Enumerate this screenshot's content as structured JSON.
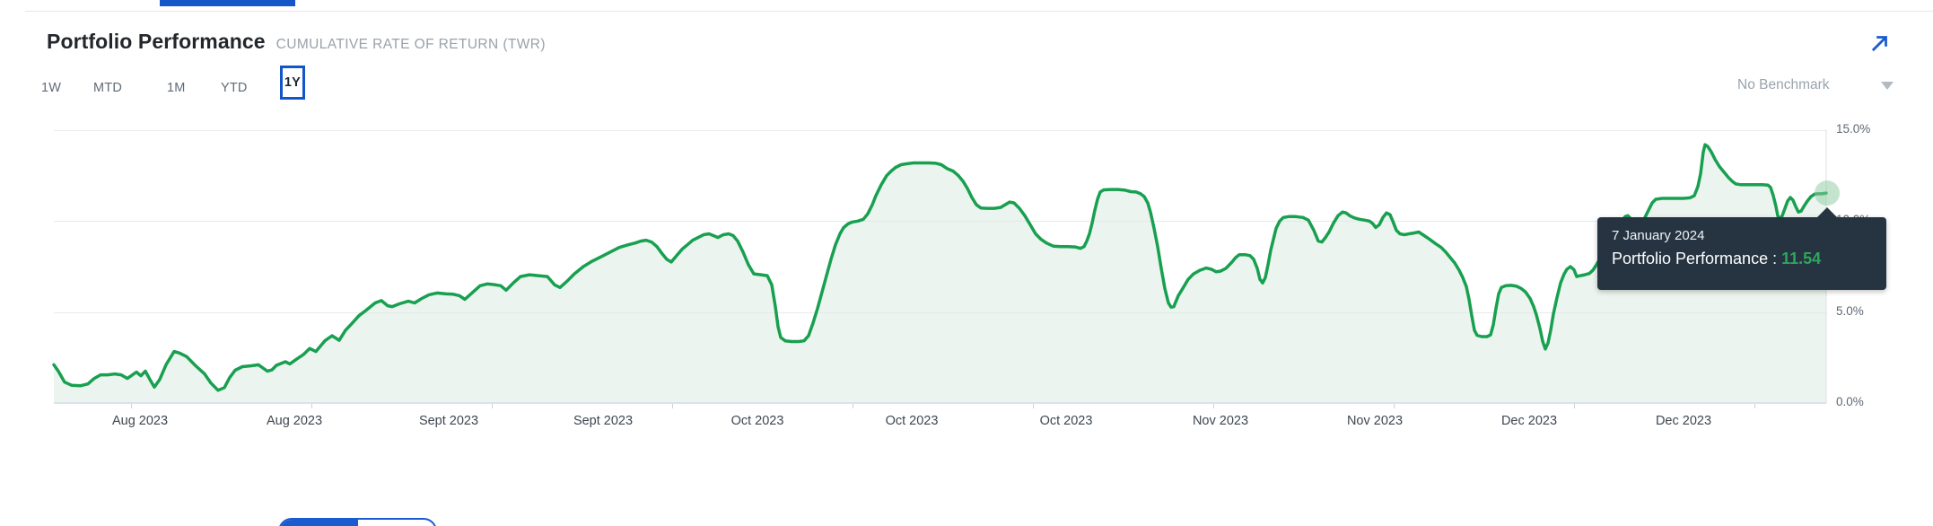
{
  "header": {
    "title": "Portfolio Performance",
    "subtitle": "CUMULATIVE RATE OF RETURN (TWR)",
    "expand_icon": "expand-arrow"
  },
  "range_tabs": {
    "items": [
      {
        "label": "1W",
        "selected": false
      },
      {
        "label": "MTD",
        "selected": false
      },
      {
        "label": "1M",
        "selected": false
      },
      {
        "label": "YTD",
        "selected": false
      },
      {
        "label": "1Y",
        "selected": true
      }
    ]
  },
  "benchmark_select": {
    "value": "No Benchmark",
    "caret_icon": "chevron-down"
  },
  "tooltip": {
    "date": "7 January 2024",
    "series_label": "Portfolio Performance",
    "separator": " : ",
    "value": "11.54"
  },
  "colors": {
    "accent_blue": "#1b5bd0",
    "line_green": "#18a050",
    "fill_green": "#dcebe1",
    "tooltip_bg": "#263442",
    "tooltip_value_green": "#2fa55c"
  },
  "chart_data": {
    "type": "area",
    "title": "Portfolio Performance",
    "series_name": "Portfolio Performance",
    "unit": "%",
    "ylim": [
      0,
      15
    ],
    "grid": "horizontal",
    "legend": "none",
    "y_ticks": [
      {
        "label": "15.0%",
        "value": 15
      },
      {
        "label": "10.0%",
        "value": 10
      },
      {
        "label": "5.0%",
        "value": 5
      },
      {
        "label": "0.0%",
        "value": 0
      }
    ],
    "x_tick_labels": [
      "Aug 2023",
      "Aug 2023",
      "Sept 2023",
      "Sept 2023",
      "Oct 2023",
      "Oct 2023",
      "Oct 2023",
      "Nov 2023",
      "Nov 2023",
      "Dec 2023",
      "Dec 2023"
    ],
    "highlight_point": {
      "date": "7 January 2024",
      "value": 11.54
    },
    "points": [
      [
        0,
        2.1
      ],
      [
        5,
        1.75
      ],
      [
        12,
        1.15
      ],
      [
        20,
        0.97
      ],
      [
        30,
        0.95
      ],
      [
        38,
        1.05
      ],
      [
        45,
        1.35
      ],
      [
        52,
        1.55
      ],
      [
        60,
        1.55
      ],
      [
        68,
        1.6
      ],
      [
        75,
        1.55
      ],
      [
        82,
        1.35
      ],
      [
        92,
        1.7
      ],
      [
        97,
        1.5
      ],
      [
        102,
        1.75
      ],
      [
        107,
        1.3
      ],
      [
        112,
        0.88
      ],
      [
        118,
        1.3
      ],
      [
        125,
        2.1
      ],
      [
        134,
        2.83
      ],
      [
        140,
        2.75
      ],
      [
        148,
        2.55
      ],
      [
        158,
        2.05
      ],
      [
        168,
        1.6
      ],
      [
        175,
        1.1
      ],
      [
        183,
        0.7
      ],
      [
        190,
        0.85
      ],
      [
        196,
        1.4
      ],
      [
        202,
        1.8
      ],
      [
        210,
        2.0
      ],
      [
        220,
        2.05
      ],
      [
        228,
        2.1
      ],
      [
        238,
        1.75
      ],
      [
        243,
        1.82
      ],
      [
        248,
        2.07
      ],
      [
        258,
        2.27
      ],
      [
        263,
        2.15
      ],
      [
        270,
        2.4
      ],
      [
        278,
        2.66
      ],
      [
        285,
        3.0
      ],
      [
        292,
        2.83
      ],
      [
        302,
        3.42
      ],
      [
        310,
        3.7
      ],
      [
        318,
        3.45
      ],
      [
        325,
        4.0
      ],
      [
        332,
        4.36
      ],
      [
        340,
        4.8
      ],
      [
        348,
        5.1
      ],
      [
        358,
        5.5
      ],
      [
        365,
        5.63
      ],
      [
        372,
        5.35
      ],
      [
        377,
        5.3
      ],
      [
        385,
        5.45
      ],
      [
        395,
        5.6
      ],
      [
        402,
        5.5
      ],
      [
        410,
        5.75
      ],
      [
        418,
        5.95
      ],
      [
        427,
        6.05
      ],
      [
        437,
        6.0
      ],
      [
        445,
        5.98
      ],
      [
        452,
        5.9
      ],
      [
        458,
        5.7
      ],
      [
        467,
        6.1
      ],
      [
        475,
        6.45
      ],
      [
        483,
        6.55
      ],
      [
        492,
        6.5
      ],
      [
        498,
        6.45
      ],
      [
        504,
        6.2
      ],
      [
        512,
        6.6
      ],
      [
        520,
        6.95
      ],
      [
        530,
        7.05
      ],
      [
        540,
        7.0
      ],
      [
        550,
        6.95
      ],
      [
        558,
        6.5
      ],
      [
        564,
        6.35
      ],
      [
        572,
        6.7
      ],
      [
        580,
        7.1
      ],
      [
        590,
        7.5
      ],
      [
        600,
        7.8
      ],
      [
        610,
        8.05
      ],
      [
        620,
        8.3
      ],
      [
        630,
        8.55
      ],
      [
        640,
        8.7
      ],
      [
        648,
        8.8
      ],
      [
        654,
        8.9
      ],
      [
        660,
        8.95
      ],
      [
        666,
        8.85
      ],
      [
        672,
        8.6
      ],
      [
        678,
        8.2
      ],
      [
        683,
        7.9
      ],
      [
        688,
        7.75
      ],
      [
        694,
        8.1
      ],
      [
        700,
        8.45
      ],
      [
        706,
        8.7
      ],
      [
        712,
        8.95
      ],
      [
        718,
        9.1
      ],
      [
        724,
        9.25
      ],
      [
        730,
        9.3
      ],
      [
        735,
        9.2
      ],
      [
        740,
        9.1
      ],
      [
        746,
        9.25
      ],
      [
        752,
        9.3
      ],
      [
        757,
        9.2
      ],
      [
        762,
        8.9
      ],
      [
        768,
        8.3
      ],
      [
        774,
        7.6
      ],
      [
        780,
        7.1
      ],
      [
        788,
        7.05
      ],
      [
        795,
        7.0
      ],
      [
        800,
        6.5
      ],
      [
        804,
        5.3
      ],
      [
        807,
        4.2
      ],
      [
        810,
        3.6
      ],
      [
        815,
        3.42
      ],
      [
        822,
        3.38
      ],
      [
        830,
        3.38
      ],
      [
        836,
        3.42
      ],
      [
        841,
        3.7
      ],
      [
        846,
        4.4
      ],
      [
        851,
        5.2
      ],
      [
        856,
        6.1
      ],
      [
        861,
        7.0
      ],
      [
        866,
        7.9
      ],
      [
        871,
        8.7
      ],
      [
        876,
        9.3
      ],
      [
        880,
        9.64
      ],
      [
        885,
        9.85
      ],
      [
        890,
        9.95
      ],
      [
        896,
        10.0
      ],
      [
        902,
        10.1
      ],
      [
        907,
        10.4
      ],
      [
        912,
        10.9
      ],
      [
        916,
        11.4
      ],
      [
        922,
        12.0
      ],
      [
        928,
        12.5
      ],
      [
        933,
        12.75
      ],
      [
        938,
        12.95
      ],
      [
        944,
        13.1
      ],
      [
        950,
        13.15
      ],
      [
        958,
        13.2
      ],
      [
        966,
        13.2
      ],
      [
        975,
        13.2
      ],
      [
        983,
        13.18
      ],
      [
        989,
        13.1
      ],
      [
        995,
        12.9
      ],
      [
        1002,
        12.75
      ],
      [
        1008,
        12.5
      ],
      [
        1013,
        12.2
      ],
      [
        1018,
        11.8
      ],
      [
        1023,
        11.3
      ],
      [
        1028,
        10.9
      ],
      [
        1033,
        10.72
      ],
      [
        1040,
        10.7
      ],
      [
        1048,
        10.7
      ],
      [
        1055,
        10.75
      ],
      [
        1060,
        10.9
      ],
      [
        1065,
        11.05
      ],
      [
        1070,
        11.0
      ],
      [
        1076,
        10.7
      ],
      [
        1082,
        10.3
      ],
      [
        1088,
        9.8
      ],
      [
        1094,
        9.3
      ],
      [
        1100,
        9.0
      ],
      [
        1106,
        8.8
      ],
      [
        1114,
        8.62
      ],
      [
        1122,
        8.6
      ],
      [
        1130,
        8.6
      ],
      [
        1138,
        8.58
      ],
      [
        1144,
        8.5
      ],
      [
        1148,
        8.6
      ],
      [
        1151,
        8.9
      ],
      [
        1154,
        9.3
      ],
      [
        1157,
        9.9
      ],
      [
        1160,
        10.6
      ],
      [
        1163,
        11.2
      ],
      [
        1166,
        11.6
      ],
      [
        1170,
        11.72
      ],
      [
        1178,
        11.74
      ],
      [
        1186,
        11.74
      ],
      [
        1194,
        11.7
      ],
      [
        1200,
        11.62
      ],
      [
        1206,
        11.6
      ],
      [
        1211,
        11.5
      ],
      [
        1215,
        11.35
      ],
      [
        1219,
        11.0
      ],
      [
        1222,
        10.5
      ],
      [
        1226,
        9.6
      ],
      [
        1230,
        8.6
      ],
      [
        1234,
        7.4
      ],
      [
        1238,
        6.3
      ],
      [
        1242,
        5.5
      ],
      [
        1245,
        5.27
      ],
      [
        1248,
        5.3
      ],
      [
        1253,
        5.9
      ],
      [
        1258,
        6.3
      ],
      [
        1264,
        6.8
      ],
      [
        1270,
        7.1
      ],
      [
        1277,
        7.3
      ],
      [
        1284,
        7.42
      ],
      [
        1290,
        7.35
      ],
      [
        1295,
        7.22
      ],
      [
        1300,
        7.25
      ],
      [
        1306,
        7.4
      ],
      [
        1312,
        7.7
      ],
      [
        1317,
        8.0
      ],
      [
        1321,
        8.15
      ],
      [
        1328,
        8.15
      ],
      [
        1333,
        8.1
      ],
      [
        1337,
        7.9
      ],
      [
        1341,
        7.4
      ],
      [
        1344,
        6.8
      ],
      [
        1347,
        6.6
      ],
      [
        1350,
        6.9
      ],
      [
        1353,
        7.6
      ],
      [
        1356,
        8.4
      ],
      [
        1359,
        9.0
      ],
      [
        1362,
        9.6
      ],
      [
        1366,
        10.0
      ],
      [
        1370,
        10.2
      ],
      [
        1376,
        10.25
      ],
      [
        1384,
        10.25
      ],
      [
        1392,
        10.2
      ],
      [
        1398,
        10.05
      ],
      [
        1404,
        9.5
      ],
      [
        1409,
        8.9
      ],
      [
        1413,
        8.85
      ],
      [
        1417,
        9.1
      ],
      [
        1421,
        9.4
      ],
      [
        1426,
        9.9
      ],
      [
        1431,
        10.3
      ],
      [
        1436,
        10.5
      ],
      [
        1440,
        10.45
      ],
      [
        1444,
        10.3
      ],
      [
        1449,
        10.18
      ],
      [
        1455,
        10.1
      ],
      [
        1461,
        10.05
      ],
      [
        1466,
        10.0
      ],
      [
        1470,
        9.85
      ],
      [
        1473,
        9.65
      ],
      [
        1477,
        9.8
      ],
      [
        1481,
        10.2
      ],
      [
        1485,
        10.45
      ],
      [
        1489,
        10.35
      ],
      [
        1492,
        10.0
      ],
      [
        1496,
        9.5
      ],
      [
        1500,
        9.3
      ],
      [
        1505,
        9.25
      ],
      [
        1510,
        9.3
      ],
      [
        1516,
        9.35
      ],
      [
        1521,
        9.4
      ],
      [
        1527,
        9.2
      ],
      [
        1533,
        9.0
      ],
      [
        1540,
        8.75
      ],
      [
        1546,
        8.55
      ],
      [
        1551,
        8.3
      ],
      [
        1556,
        8.0
      ],
      [
        1561,
        7.7
      ],
      [
        1566,
        7.3
      ],
      [
        1570,
        6.9
      ],
      [
        1574,
        6.4
      ],
      [
        1577,
        5.7
      ],
      [
        1580,
        4.8
      ],
      [
        1583,
        4.0
      ],
      [
        1586,
        3.72
      ],
      [
        1591,
        3.65
      ],
      [
        1597,
        3.65
      ],
      [
        1601,
        3.75
      ],
      [
        1604,
        4.3
      ],
      [
        1607,
        5.2
      ],
      [
        1610,
        6.0
      ],
      [
        1613,
        6.35
      ],
      [
        1618,
        6.45
      ],
      [
        1624,
        6.47
      ],
      [
        1630,
        6.42
      ],
      [
        1635,
        6.3
      ],
      [
        1640,
        6.1
      ],
      [
        1645,
        5.75
      ],
      [
        1649,
        5.3
      ],
      [
        1652,
        4.85
      ],
      [
        1656,
        4.1
      ],
      [
        1659,
        3.4
      ],
      [
        1662,
        2.97
      ],
      [
        1665,
        3.3
      ],
      [
        1668,
        4.0
      ],
      [
        1671,
        4.9
      ],
      [
        1675,
        5.8
      ],
      [
        1679,
        6.6
      ],
      [
        1683,
        7.1
      ],
      [
        1686,
        7.35
      ],
      [
        1690,
        7.5
      ],
      [
        1694,
        7.32
      ],
      [
        1697,
        6.95
      ],
      [
        1701,
        7.0
      ],
      [
        1706,
        7.05
      ],
      [
        1711,
        7.12
      ],
      [
        1715,
        7.3
      ],
      [
        1719,
        7.6
      ],
      [
        1723,
        7.95
      ],
      [
        1727,
        8.3
      ],
      [
        1731,
        8.7
      ],
      [
        1735,
        9.05
      ],
      [
        1739,
        9.4
      ],
      [
        1743,
        9.7
      ],
      [
        1747,
        10.0
      ],
      [
        1751,
        10.25
      ],
      [
        1754,
        10.3
      ],
      [
        1758,
        10.1
      ],
      [
        1762,
        9.78
      ],
      [
        1765,
        9.7
      ],
      [
        1769,
        9.9
      ],
      [
        1773,
        10.2
      ],
      [
        1777,
        10.6
      ],
      [
        1781,
        11.0
      ],
      [
        1785,
        11.2
      ],
      [
        1792,
        11.25
      ],
      [
        1800,
        11.25
      ],
      [
        1808,
        11.25
      ],
      [
        1816,
        11.25
      ],
      [
        1823,
        11.28
      ],
      [
        1828,
        11.4
      ],
      [
        1832,
        11.9
      ],
      [
        1835,
        12.6
      ],
      [
        1838,
        13.8
      ],
      [
        1840,
        14.2
      ],
      [
        1843,
        14.1
      ],
      [
        1847,
        13.8
      ],
      [
        1851,
        13.4
      ],
      [
        1856,
        13.0
      ],
      [
        1861,
        12.7
      ],
      [
        1866,
        12.4
      ],
      [
        1870,
        12.2
      ],
      [
        1874,
        12.05
      ],
      [
        1880,
        12.0
      ],
      [
        1888,
        12.0
      ],
      [
        1896,
        12.0
      ],
      [
        1904,
        12.0
      ],
      [
        1910,
        11.98
      ],
      [
        1913,
        11.85
      ],
      [
        1916,
        11.4
      ],
      [
        1919,
        10.8
      ],
      [
        1921,
        10.3
      ],
      [
        1923,
        10.1
      ],
      [
        1926,
        10.3
      ],
      [
        1929,
        10.7
      ],
      [
        1932,
        11.1
      ],
      [
        1935,
        11.3
      ],
      [
        1938,
        11.15
      ],
      [
        1941,
        10.8
      ],
      [
        1944,
        10.5
      ],
      [
        1947,
        10.55
      ],
      [
        1950,
        10.8
      ],
      [
        1954,
        11.1
      ],
      [
        1958,
        11.35
      ],
      [
        1962,
        11.48
      ],
      [
        1966,
        11.5
      ],
      [
        1970,
        11.5
      ],
      [
        1975,
        11.54
      ]
    ]
  }
}
